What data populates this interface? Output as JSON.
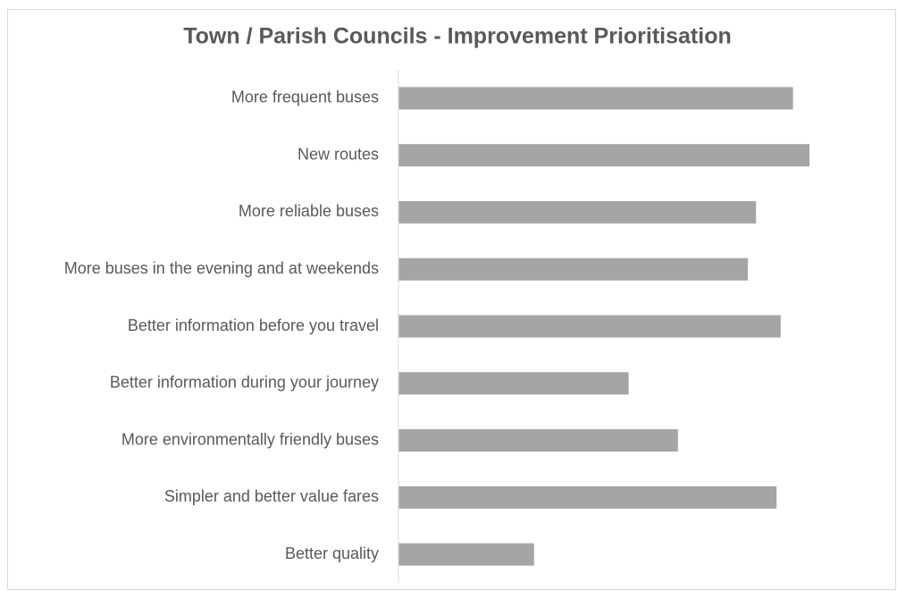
{
  "chart_data": {
    "type": "bar",
    "orientation": "horizontal",
    "title": "Town / Parish Councils - Improvement Prioritisation",
    "categories": [
      "More frequent buses",
      "New routes",
      "More reliable buses",
      "More buses in the evening and at weekends",
      "Better information before you travel",
      "Better information during your journey",
      "More environmentally friendly buses",
      "Simpler and better value fares",
      "Better quality"
    ],
    "values": [
      96,
      100,
      87,
      85,
      93,
      56,
      68,
      92,
      33
    ],
    "color": "#a5a5a5",
    "xlim": [
      0,
      100
    ]
  }
}
